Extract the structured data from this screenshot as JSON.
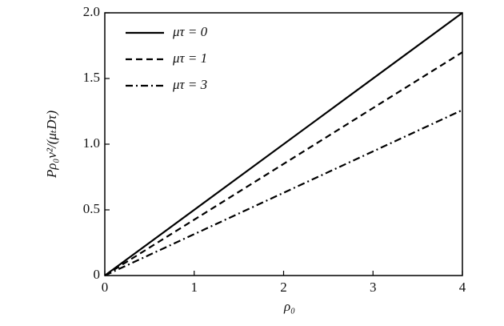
{
  "chart_data": {
    "type": "line",
    "x_label": "ρ₀",
    "y_label": "Pρ₀v²/(μₜDτ)",
    "x": [
      0,
      4
    ],
    "series": [
      {
        "name": "μτ = 0",
        "color": "#000000",
        "style": "solid",
        "values": [
          0,
          2.0
        ]
      },
      {
        "name": "μτ = 1",
        "color": "#000000",
        "style": "dashed",
        "values": [
          0,
          1.7
        ]
      },
      {
        "name": "μτ = 3",
        "color": "#000000",
        "style": "dashdot",
        "values": [
          0,
          1.26
        ]
      }
    ],
    "xlim": [
      0,
      4
    ],
    "xticks": [
      0,
      1,
      2,
      3,
      4
    ],
    "ylim": [
      0,
      2
    ],
    "yticks": [
      0,
      0.5,
      {
        "value": 1,
        "label": "1.0"
      },
      1.5,
      {
        "value": 2,
        "label": "2.0"
      }
    ],
    "legend": "upper left",
    "grid": false
  }
}
